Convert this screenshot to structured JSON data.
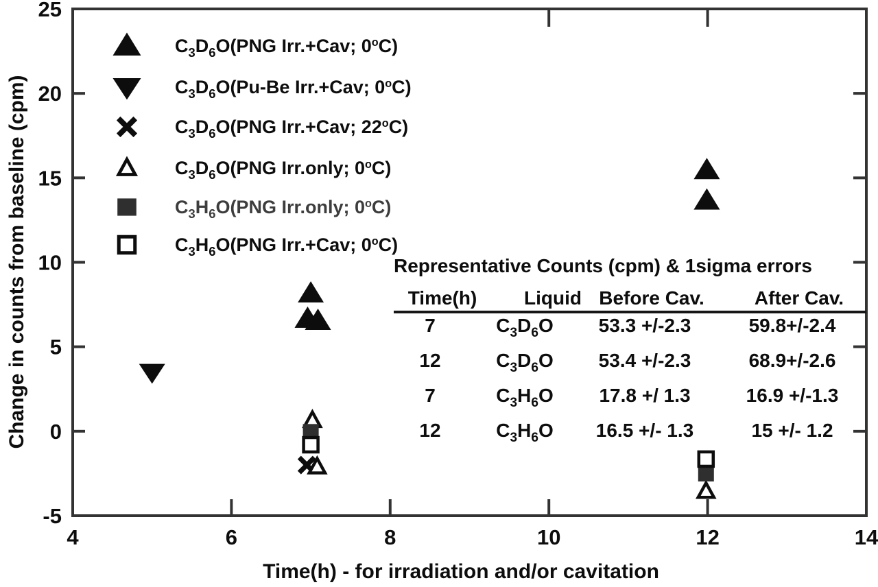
{
  "chart_data": {
    "type": "scatter",
    "title": "",
    "xlabel": "Time(h) -  for irradiation and/or cavitation",
    "ylabel": "Change in counts from baseline (cpm)",
    "xlim": [
      4,
      14
    ],
    "ylim": [
      -5,
      25
    ],
    "xticks": [
      4,
      6,
      8,
      10,
      12,
      14
    ],
    "yticks": [
      -5,
      0,
      5,
      10,
      15,
      20,
      25
    ],
    "top_ticks_at_x": [
      10,
      12
    ],
    "right_ticks_at_y": [
      0,
      5,
      10,
      15,
      20
    ],
    "grid": false,
    "legend_position": "upper-left",
    "axis_color": "#333333",
    "text_color": "#0d0d0d",
    "series": [
      {
        "name": "C_3_D_6_O(PNG Irr.+Cav; 0^o^C)",
        "marker": "triangle-up-filled",
        "color": "#0d0d0d",
        "points": [
          [
            7.0,
            8.15
          ],
          [
            6.96,
            6.65
          ],
          [
            7.09,
            6.53
          ],
          [
            11.99,
            15.45
          ],
          [
            11.99,
            13.65
          ]
        ]
      },
      {
        "name": "C_3_D_6_O(Pu-Be Irr.+Cav; 0^o^C)",
        "marker": "triangle-down-filled",
        "color": "#0d0d0d",
        "points": [
          [
            5.0,
            3.5
          ]
        ]
      },
      {
        "name": "C_3_D_6_O(PNG Irr.+Cav; 22^o^C)",
        "marker": "x-thick",
        "color": "#0d0d0d",
        "points": [
          [
            6.95,
            -2.0
          ]
        ]
      },
      {
        "name": "C_3_D_6_O(PNG Irr.only; 0^o^C)",
        "marker": "triangle-up-open",
        "color": "#0d0d0d",
        "points": [
          [
            7.02,
            0.65
          ],
          [
            7.08,
            -2.1
          ],
          [
            11.98,
            -3.55
          ]
        ]
      },
      {
        "name": "C_3_H_6_O(PNG Irr.only; 0^o^C)",
        "marker": "square-filled",
        "color": "#2f2f2f",
        "text_color": "#3d3d3d",
        "points": [
          [
            7.0,
            0.0
          ],
          [
            11.98,
            -2.55
          ]
        ]
      },
      {
        "name": "C_3_H_6_O(PNG Irr.+Cav; 0^o^C)",
        "marker": "square-open",
        "color": "#0d0d0d",
        "points": [
          [
            7.0,
            -0.8
          ],
          [
            11.98,
            -1.65
          ]
        ]
      }
    ]
  },
  "table": {
    "title": "Representative Counts (cpm) & 1sigma errors",
    "columns": [
      "Time(h)",
      "Liquid",
      "Before Cav.",
      "After Cav."
    ],
    "rows": [
      [
        "7",
        "C_3_D_6_O",
        "53.3 +/-2.3",
        "59.8+/-2.4"
      ],
      [
        "12",
        "C_3_D_6_O",
        "53.4 +/-2.3",
        "68.9+/-2.6"
      ],
      [
        "7",
        "C_3_H_6_O",
        "17.8 +/ 1.3",
        "16.9 +/-1.3"
      ],
      [
        "12",
        "C_3_H_6_O",
        "16.5 +/- 1.3",
        "15  +/- 1.2"
      ]
    ]
  }
}
